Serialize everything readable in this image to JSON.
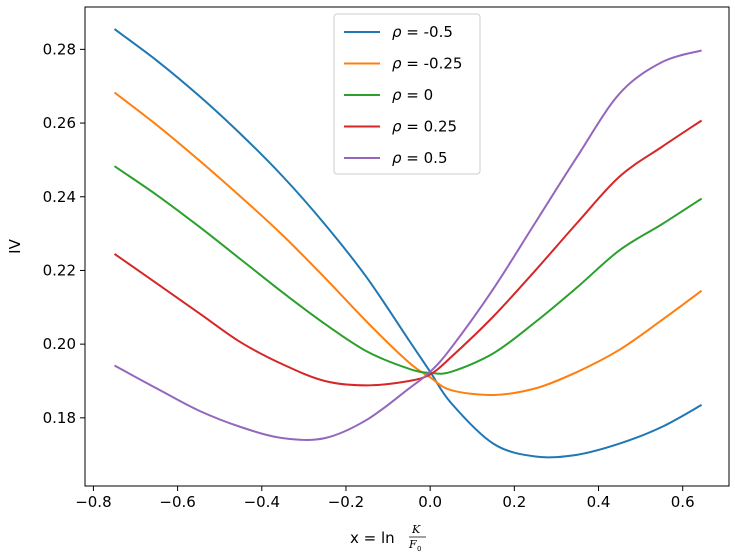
{
  "chart_data": {
    "type": "line",
    "title": "",
    "xlabel_prefix": "x = ln",
    "xlabel_num": "K",
    "xlabel_den": "F",
    "xlabel_sub": "0",
    "ylabel": "IV",
    "xlim": [
      -0.82,
      0.71
    ],
    "ylim": [
      0.1615,
      0.2915
    ],
    "xticks": [
      -0.8,
      -0.6,
      -0.4,
      -0.2,
      0.0,
      0.2,
      0.4,
      0.6
    ],
    "xtick_labels": [
      "−0.8",
      "−0.6",
      "−0.4",
      "−0.2",
      "0.0",
      "0.2",
      "0.4",
      "0.6"
    ],
    "yticks": [
      0.18,
      0.2,
      0.22,
      0.24,
      0.26,
      0.28
    ],
    "ytick_labels": [
      "0.18",
      "0.20",
      "0.22",
      "0.24",
      "0.26",
      "0.28"
    ],
    "legend_position": "upper-center",
    "x": [
      -0.75,
      -0.65,
      -0.55,
      -0.45,
      -0.35,
      -0.25,
      -0.15,
      -0.05,
      0.0,
      0.05,
      0.15,
      0.25,
      0.35,
      0.45,
      0.55,
      0.645
    ],
    "series": [
      {
        "name": "-0.5",
        "color": "#1f77b4",
        "values": [
          0.2855,
          0.277,
          0.2675,
          0.257,
          0.2455,
          0.2325,
          0.218,
          0.201,
          0.1925,
          0.184,
          0.173,
          0.1695,
          0.17,
          0.173,
          0.1775,
          0.1835
        ]
      },
      {
        "name": "-0.25",
        "color": "#ff7f0e",
        "values": [
          0.2683,
          0.2595,
          0.25,
          0.24,
          0.2295,
          0.218,
          0.206,
          0.195,
          0.191,
          0.1875,
          0.1862,
          0.188,
          0.1925,
          0.1985,
          0.2065,
          0.2145
        ]
      },
      {
        "name": "0",
        "color": "#2ca02c",
        "values": [
          0.2483,
          0.2405,
          0.232,
          0.223,
          0.214,
          0.2055,
          0.198,
          0.1933,
          0.1922,
          0.1925,
          0.1975,
          0.206,
          0.2155,
          0.2255,
          0.2325,
          0.2395
        ]
      },
      {
        "name": "0.25",
        "color": "#d62728",
        "values": [
          0.2245,
          0.2165,
          0.2085,
          0.2005,
          0.1945,
          0.19,
          0.1888,
          0.19,
          0.1918,
          0.1965,
          0.2075,
          0.22,
          0.233,
          0.2455,
          0.2535,
          0.2607
        ]
      },
      {
        "name": "0.5",
        "color": "#9467bd",
        "values": [
          0.1942,
          0.188,
          0.182,
          0.1775,
          0.1745,
          0.1745,
          0.1795,
          0.188,
          0.1925,
          0.199,
          0.215,
          0.233,
          0.251,
          0.268,
          0.2765,
          0.2797
        ]
      }
    ]
  }
}
